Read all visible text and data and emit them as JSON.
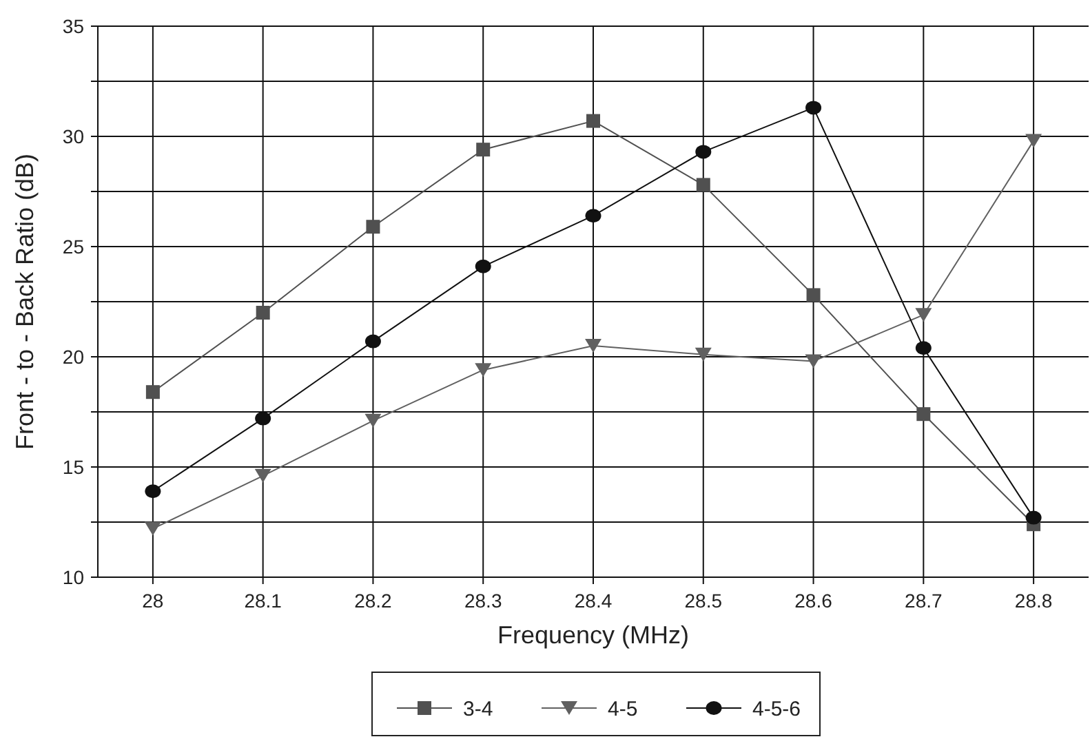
{
  "chart_data": {
    "type": "line",
    "xlabel": "Frequency (MHz)",
    "ylabel": "Front - to - Back Ratio (dB)",
    "categories": [
      "28",
      "28.1",
      "28.2",
      "28.3",
      "28.4",
      "28.5",
      "28.6",
      "28.7",
      "28.8"
    ],
    "ylim": [
      10,
      35
    ],
    "yticks": [
      10,
      {
        "value": 12.5,
        "label": null
      },
      15,
      {
        "value": 17.5,
        "label": null
      },
      20,
      {
        "value": 22.5,
        "label": null
      },
      25,
      {
        "value": 27.5,
        "label": null
      },
      30,
      {
        "value": 32.5,
        "label": null
      },
      35
    ],
    "grid": true,
    "legend": "bottom",
    "line_style": "solid",
    "series": [
      {
        "name": "3-4",
        "color": "#505050",
        "marker": "square",
        "values": [
          18.4,
          22,
          25.9,
          29.4,
          30.7,
          27.8,
          22.8,
          17.4,
          12.4
        ]
      },
      {
        "name": "4-5",
        "color": "#606060",
        "marker": "triangle",
        "values": [
          12.2,
          14.6,
          17.1,
          19.4,
          20.5,
          20.1,
          19.8,
          21.9,
          29.8
        ]
      },
      {
        "name": "4-5-6",
        "color": "#111111",
        "marker": "circle",
        "values": [
          13.9,
          17.2,
          20.7,
          24.1,
          26.4,
          29.3,
          31.3,
          20.4,
          12.7
        ]
      }
    ]
  }
}
